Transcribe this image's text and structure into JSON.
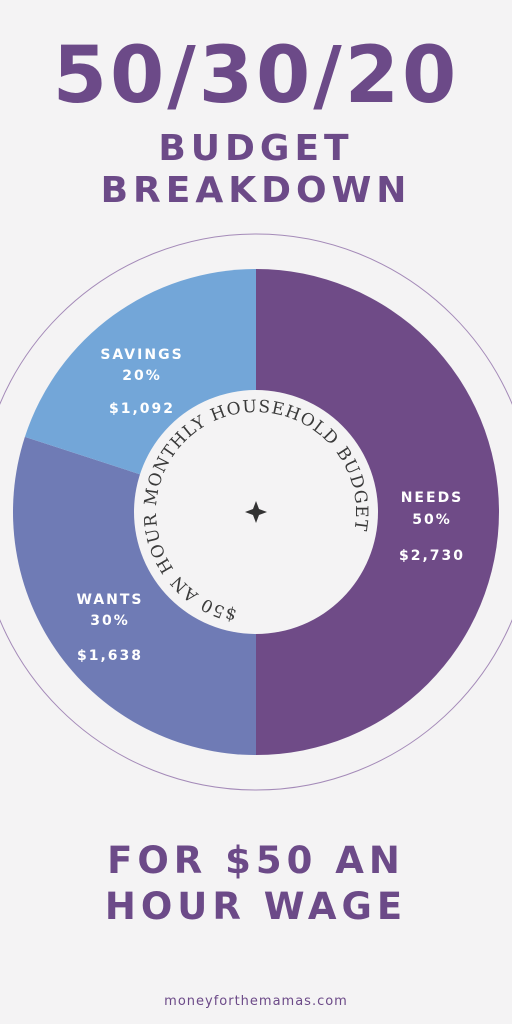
{
  "header": {
    "title": "50/30/20",
    "subtitle_line1": "BUDGET",
    "subtitle_line2": "BREAKDOWN"
  },
  "chart_data": {
    "type": "pie",
    "categories": [
      "NEEDS",
      "WANTS",
      "SAVINGS"
    ],
    "percents": [
      "50%",
      "30%",
      "20%"
    ],
    "amounts_label": [
      "$2,730",
      "$1,638",
      "$1,092"
    ],
    "values": [
      2730,
      1638,
      1092
    ],
    "center_text": "$50 AN HOUR MONTHLY HOUSEHOLD BUDGET",
    "colors": [
      "#6f4b87",
      "#6f7bb5",
      "#73a6d8"
    ]
  },
  "footer": {
    "line1": "FOR $50 AN",
    "line2": "HOUR WAGE",
    "site": "moneyforthemamas.com"
  },
  "colors": {
    "accent": "#6c4a88",
    "background": "#f4f3f4",
    "ring": "#a48ab8"
  }
}
